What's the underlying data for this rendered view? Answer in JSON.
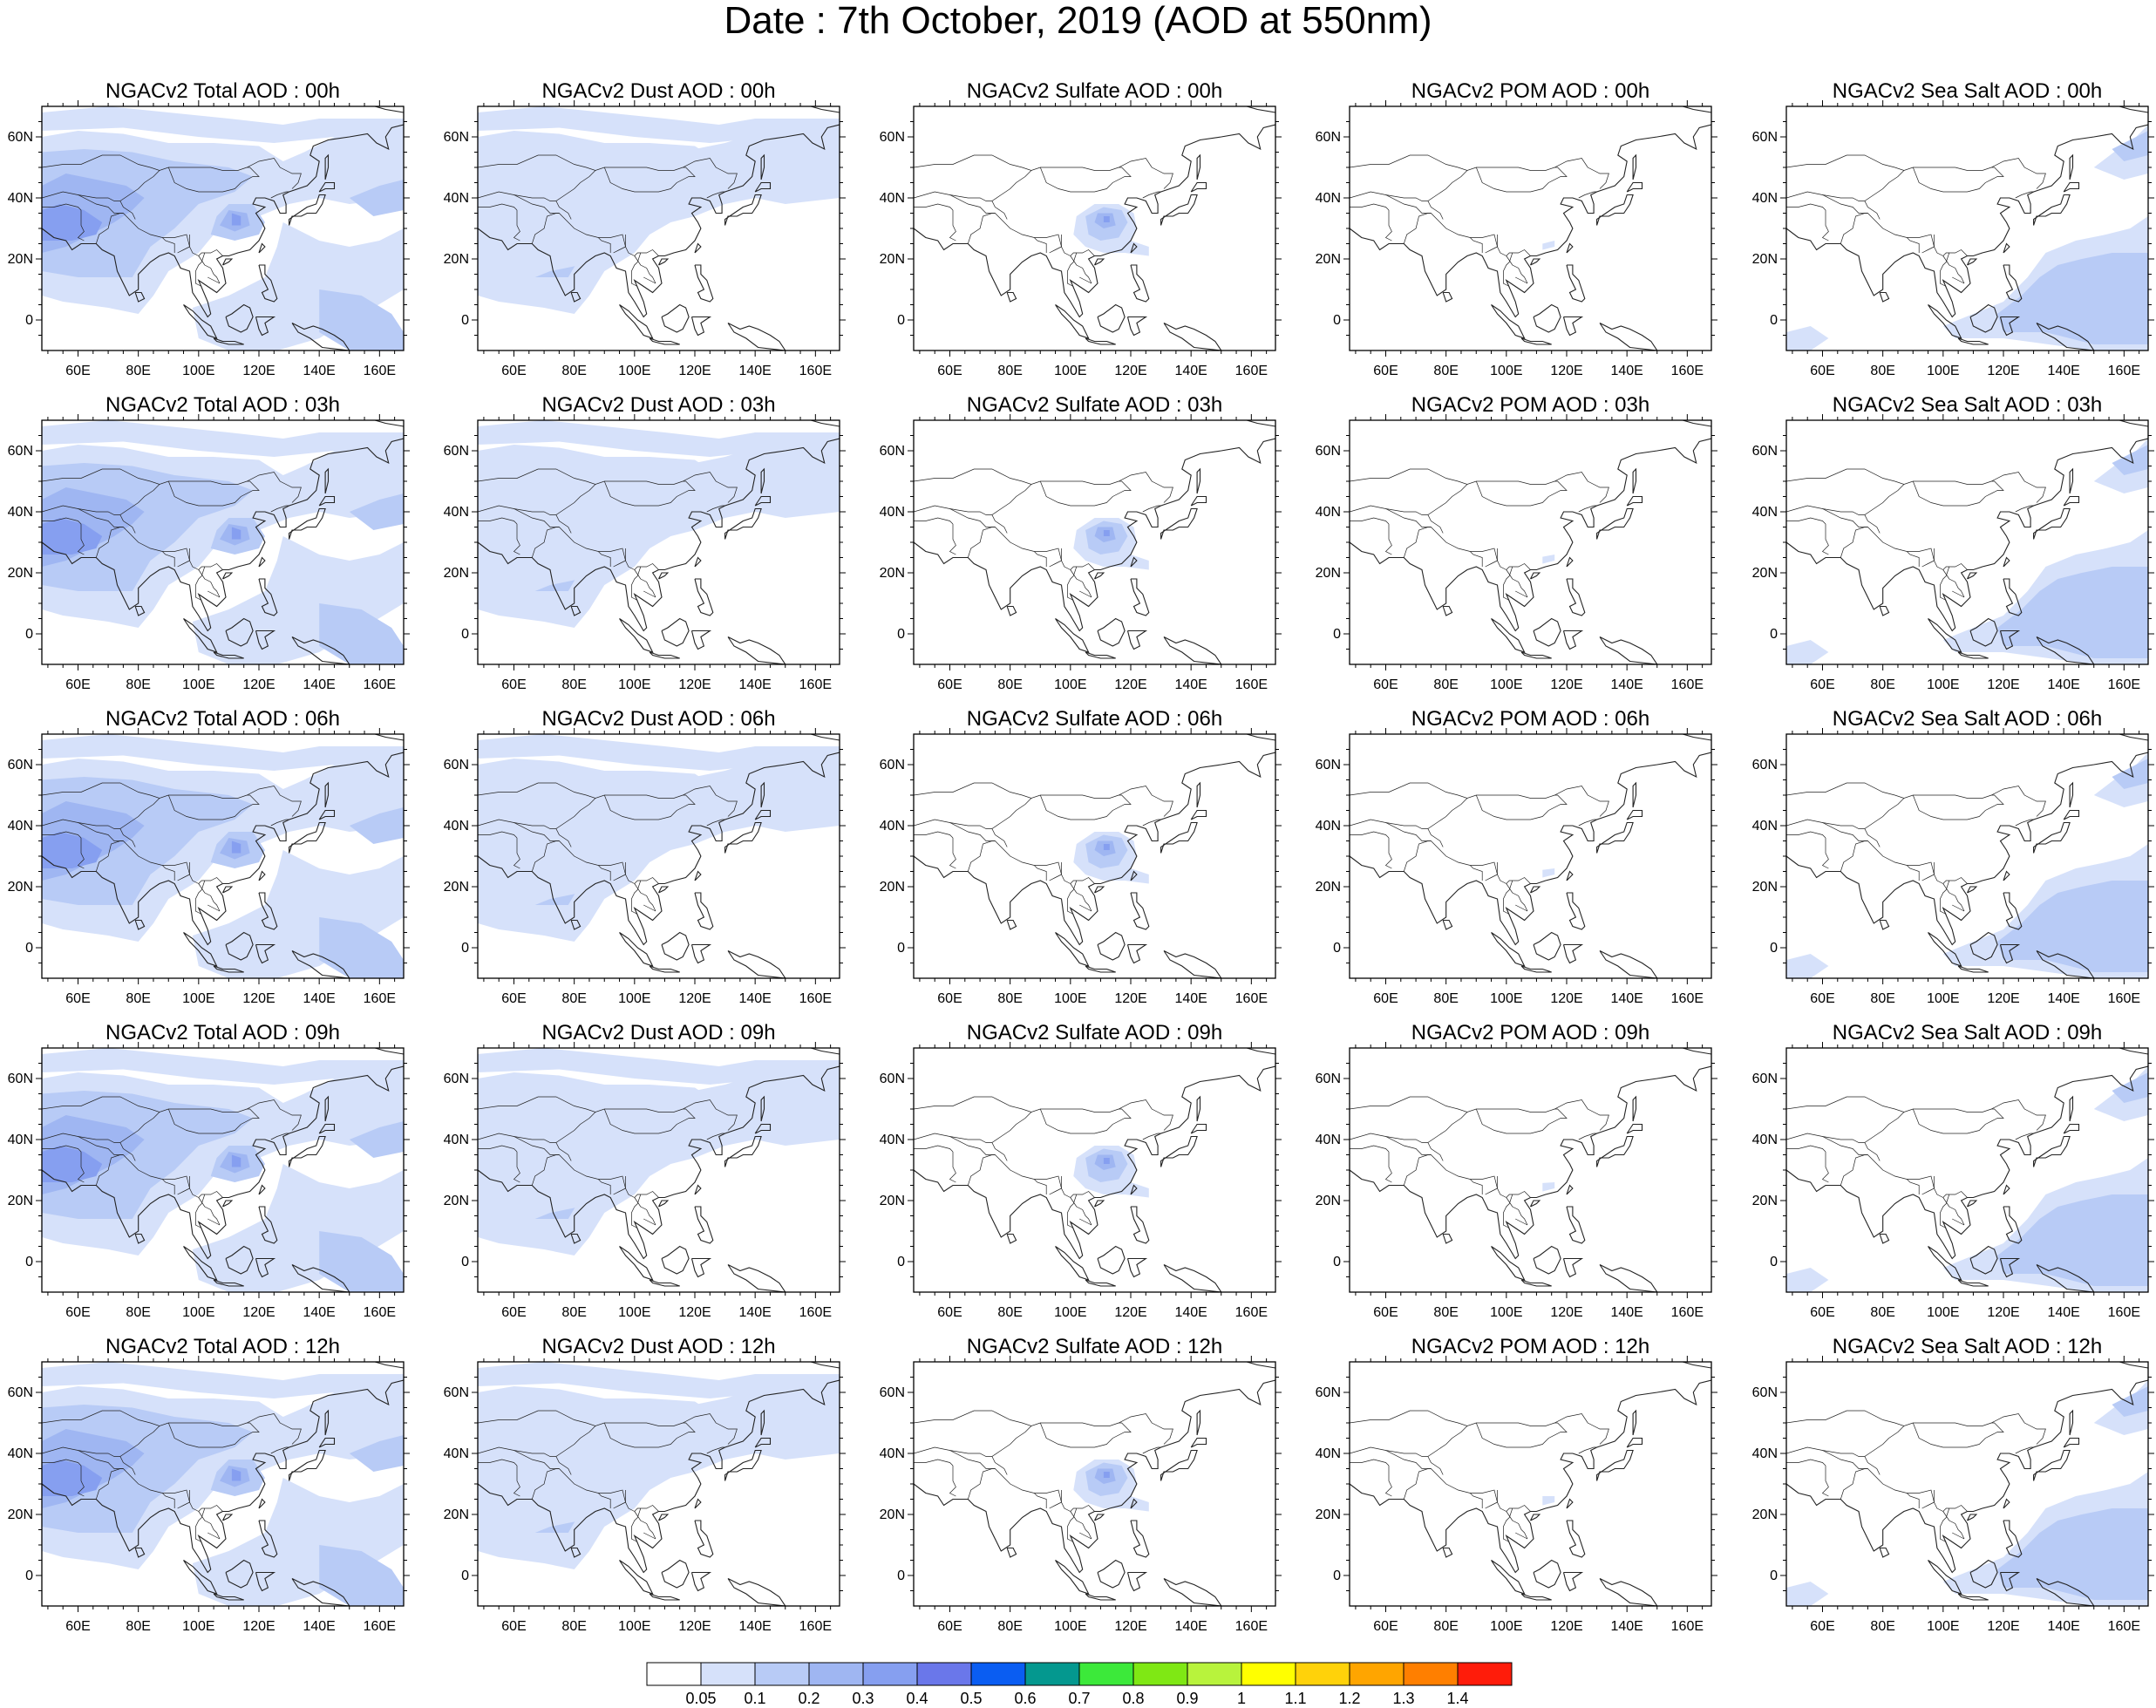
{
  "title": "Date : 7th October, 2019 (AOD at 550nm)",
  "rows": [
    "00h",
    "03h",
    "06h",
    "09h",
    "12h"
  ],
  "panels": [
    [
      {
        "title": "NGACv2 Total AOD : 00h",
        "field": "total"
      },
      {
        "title": "NGACv2 Dust AOD : 00h",
        "field": "dust"
      },
      {
        "title": "NGACv2 Sulfate AOD : 00h",
        "field": "sulfate"
      },
      {
        "title": "NGACv2 POM AOD : 00h",
        "field": "pom"
      },
      {
        "title": "NGACv2 Sea Salt AOD : 00h",
        "field": "seasalt"
      }
    ],
    [
      {
        "title": "NGACv2 Total AOD : 03h",
        "field": "total"
      },
      {
        "title": "NGACv2 Dust AOD : 03h",
        "field": "dust"
      },
      {
        "title": "NGACv2 Sulfate AOD : 03h",
        "field": "sulfate"
      },
      {
        "title": "NGACv2 POM AOD : 03h",
        "field": "pom"
      },
      {
        "title": "NGACv2 Sea Salt AOD : 03h",
        "field": "seasalt"
      }
    ],
    [
      {
        "title": "NGACv2 Total AOD : 06h",
        "field": "total"
      },
      {
        "title": "NGACv2 Dust AOD : 06h",
        "field": "dust"
      },
      {
        "title": "NGACv2 Sulfate AOD : 06h",
        "field": "sulfate"
      },
      {
        "title": "NGACv2 POM AOD : 06h",
        "field": "pom"
      },
      {
        "title": "NGACv2 Sea Salt AOD : 06h",
        "field": "seasalt"
      }
    ],
    [
      {
        "title": "NGACv2 Total AOD : 09h",
        "field": "total"
      },
      {
        "title": "NGACv2 Dust AOD : 09h",
        "field": "dust"
      },
      {
        "title": "NGACv2 Sulfate AOD : 09h",
        "field": "sulfate"
      },
      {
        "title": "NGACv2 POM AOD : 09h",
        "field": "pom"
      },
      {
        "title": "NGACv2 Sea Salt  AOD : 09h",
        "field": "seasalt"
      }
    ],
    [
      {
        "title": "NGACv2 Total AOD  : 12h",
        "field": "total"
      },
      {
        "title": "NGACv2 Dust AOD : 12h",
        "field": "dust"
      },
      {
        "title": "NGACv2 Sulfate AOD : 12h",
        "field": "sulfate"
      },
      {
        "title": "NGACv2 POM  AOD : 12h",
        "field": "pom"
      },
      {
        "title": "NGACv2 Sea Salt  AOD : 12h",
        "field": "seasalt"
      }
    ]
  ],
  "axes": {
    "lon_ticks": [
      "60E",
      "80E",
      "100E",
      "120E",
      "140E",
      "160E"
    ],
    "lat_ticks": [
      "60N",
      "40N",
      "20N",
      "0"
    ],
    "lon_range": [
      48,
      168
    ],
    "lat_range": [
      -10,
      70
    ]
  },
  "colorbar": {
    "labels": [
      "0.05",
      "0.1",
      "0.2",
      "0.3",
      "0.4",
      "0.5",
      "0.6",
      "0.7",
      "0.8",
      "0.9",
      "1",
      "1.1",
      "1.2",
      "1.3",
      "1.4"
    ],
    "colors": [
      "#ffffff",
      "#d6e1fa",
      "#b8cbf6",
      "#9fb6f2",
      "#869ff0",
      "#6a77ea",
      "#0a5df2",
      "#04988f",
      "#3ce93a",
      "#7fe814",
      "#b8f33c",
      "#ffff00",
      "#ffd20a",
      "#ffa500",
      "#ff7f00",
      "#ff1c0a"
    ]
  }
}
